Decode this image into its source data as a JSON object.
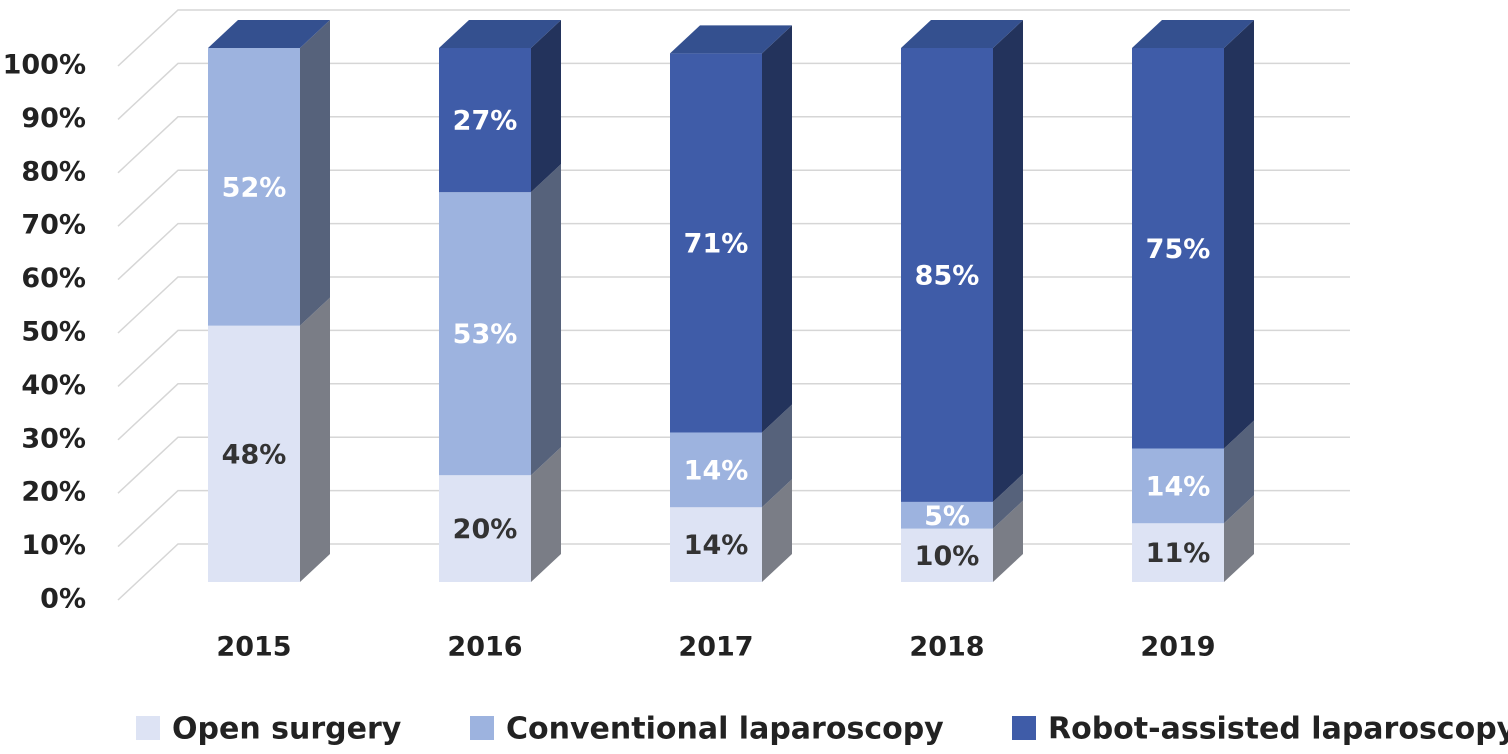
{
  "chart_data": {
    "type": "bar3d-stacked",
    "categories": [
      "2015",
      "2016",
      "2017",
      "2018",
      "2019"
    ],
    "ylim": [
      0,
      100
    ],
    "yticks": [
      {
        "value": 0,
        "label": "0%"
      },
      {
        "value": 10,
        "label": "10%"
      },
      {
        "value": 20,
        "label": "20%"
      },
      {
        "value": 30,
        "label": "30%"
      },
      {
        "value": 40,
        "label": "40%"
      },
      {
        "value": 50,
        "label": "50%"
      },
      {
        "value": 60,
        "label": "60%"
      },
      {
        "value": 70,
        "label": "70%"
      },
      {
        "value": 80,
        "label": "80%"
      },
      {
        "value": 90,
        "label": "90%"
      },
      {
        "value": 100,
        "label": "100%"
      }
    ],
    "grid": true,
    "legend": "bottom",
    "series": [
      {
        "name": "Open surgery",
        "color": "#dde3f4",
        "label_color": "#333333",
        "values": [
          48,
          20,
          14,
          10,
          11
        ],
        "value_labels": [
          "48%",
          "20%",
          "14%",
          "10%",
          "11%"
        ]
      },
      {
        "name": "Conventional laparoscopy",
        "color": "#9db3df",
        "label_color": "#ffffff",
        "values": [
          52,
          53,
          14,
          5,
          14
        ],
        "value_labels": [
          "52%",
          "53%",
          "14%",
          "5%",
          "14%"
        ]
      },
      {
        "name": "Robot-assisted laparoscopy",
        "color": "#3f5ca8",
        "label_color": "#ffffff",
        "values": [
          null,
          27,
          71,
          85,
          75
        ],
        "value_labels": [
          null,
          "27%",
          "71%",
          "85%",
          "75%"
        ]
      }
    ]
  }
}
